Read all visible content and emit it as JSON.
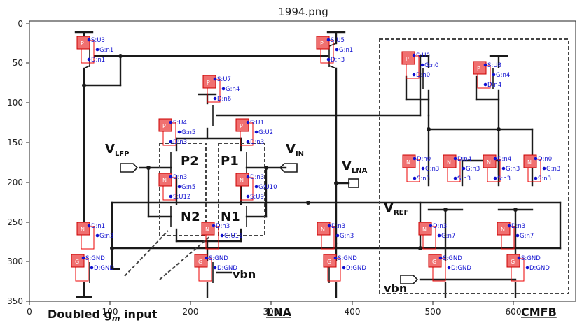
{
  "figure": {
    "title": "1994.png",
    "x_ticks": [
      "0",
      "100",
      "200",
      "300",
      "400",
      "500",
      "600"
    ],
    "y_ticks": [
      "0",
      "50",
      "100",
      "150",
      "200",
      "250",
      "300",
      "350"
    ]
  },
  "circuit_text": {
    "v_lfp": "V",
    "v_lfp_sub": "LFP",
    "v_in": "V",
    "v_in_sub": "IN",
    "v_lna": "V",
    "v_lna_sub": "LNA",
    "v_ref": "V",
    "v_ref_sub": "REF",
    "p2": "P2",
    "p1": "P1",
    "n2": "N2",
    "n1": "N1",
    "vbn_center": "vbn",
    "vbn_right": "vbn",
    "doubled_input": "Doubled g",
    "doubled_input_sub": "m",
    "doubled_input_tail": " input",
    "lna": "LNA",
    "cmfb": "CMFB"
  },
  "annotations": [
    {
      "type": "P",
      "labels": [
        "P",
        "S:U3",
        "G:n1",
        "D:n1"
      ]
    },
    {
      "type": "P",
      "labels": [
        "P",
        "S:U5",
        "G:n1",
        "D:n3"
      ]
    },
    {
      "type": "P",
      "labels": [
        "P",
        "S:U0",
        "G:n0",
        "D:n0"
      ]
    },
    {
      "type": "P",
      "labels": [
        "P",
        "S:U8",
        "G:n4",
        "D:n4"
      ]
    },
    {
      "type": "P",
      "labels": [
        "P",
        "S:U7",
        "G:n4",
        "D:n6"
      ]
    },
    {
      "type": "P",
      "labels": [
        "P",
        "S:U4",
        "G:n5",
        "D:n3"
      ]
    },
    {
      "type": "P",
      "labels": [
        "P",
        "S:U1",
        "G:U2",
        "D:n3"
      ]
    },
    {
      "type": "N",
      "labels": [
        "N",
        "D:n3",
        "G:n5",
        "S:U12"
      ]
    },
    {
      "type": "N",
      "labels": [
        "N",
        "D:n3",
        "G:U10",
        "S:U9"
      ]
    },
    {
      "type": "N",
      "labels": [
        "N",
        "D:n1",
        "G:n3"
      ]
    },
    {
      "type": "N",
      "labels": [
        "N",
        "D:n3",
        "G:U11"
      ]
    },
    {
      "type": "N",
      "labels": [
        "N",
        "D:n3",
        "G:n3"
      ]
    },
    {
      "type": "N",
      "labels": [
        "N",
        "D:n0",
        "G:n3",
        "S:n3"
      ]
    },
    {
      "type": "N",
      "labels": [
        "N",
        "D:n4",
        "G:n3",
        "S:n3"
      ]
    },
    {
      "type": "N",
      "labels": [
        "N",
        "D:n4",
        "G:n3",
        "S:n3"
      ]
    },
    {
      "type": "N",
      "labels": [
        "N",
        "D:n0",
        "G:n3",
        "S:n3"
      ]
    },
    {
      "type": "N",
      "labels": [
        "N",
        "D:n3",
        "G:n7"
      ]
    },
    {
      "type": "N",
      "labels": [
        "N",
        "D:n3",
        "G:n7"
      ]
    },
    {
      "type": "G",
      "labels": [
        "G",
        "S:GND",
        "D:GND"
      ]
    },
    {
      "type": "G",
      "labels": [
        "G",
        "S:GND",
        "D:GND"
      ]
    },
    {
      "type": "G",
      "labels": [
        "G",
        "S:GND",
        "D:GND"
      ]
    },
    {
      "type": "G",
      "labels": [
        "G",
        "S:GND",
        "D:GND"
      ]
    },
    {
      "type": "G",
      "labels": [
        "G",
        "S:GND",
        "D:GND"
      ]
    }
  ],
  "colors": {
    "annotation_text": "#1010d0",
    "annotation_box": "#ee0000",
    "badge": "#f07070"
  }
}
